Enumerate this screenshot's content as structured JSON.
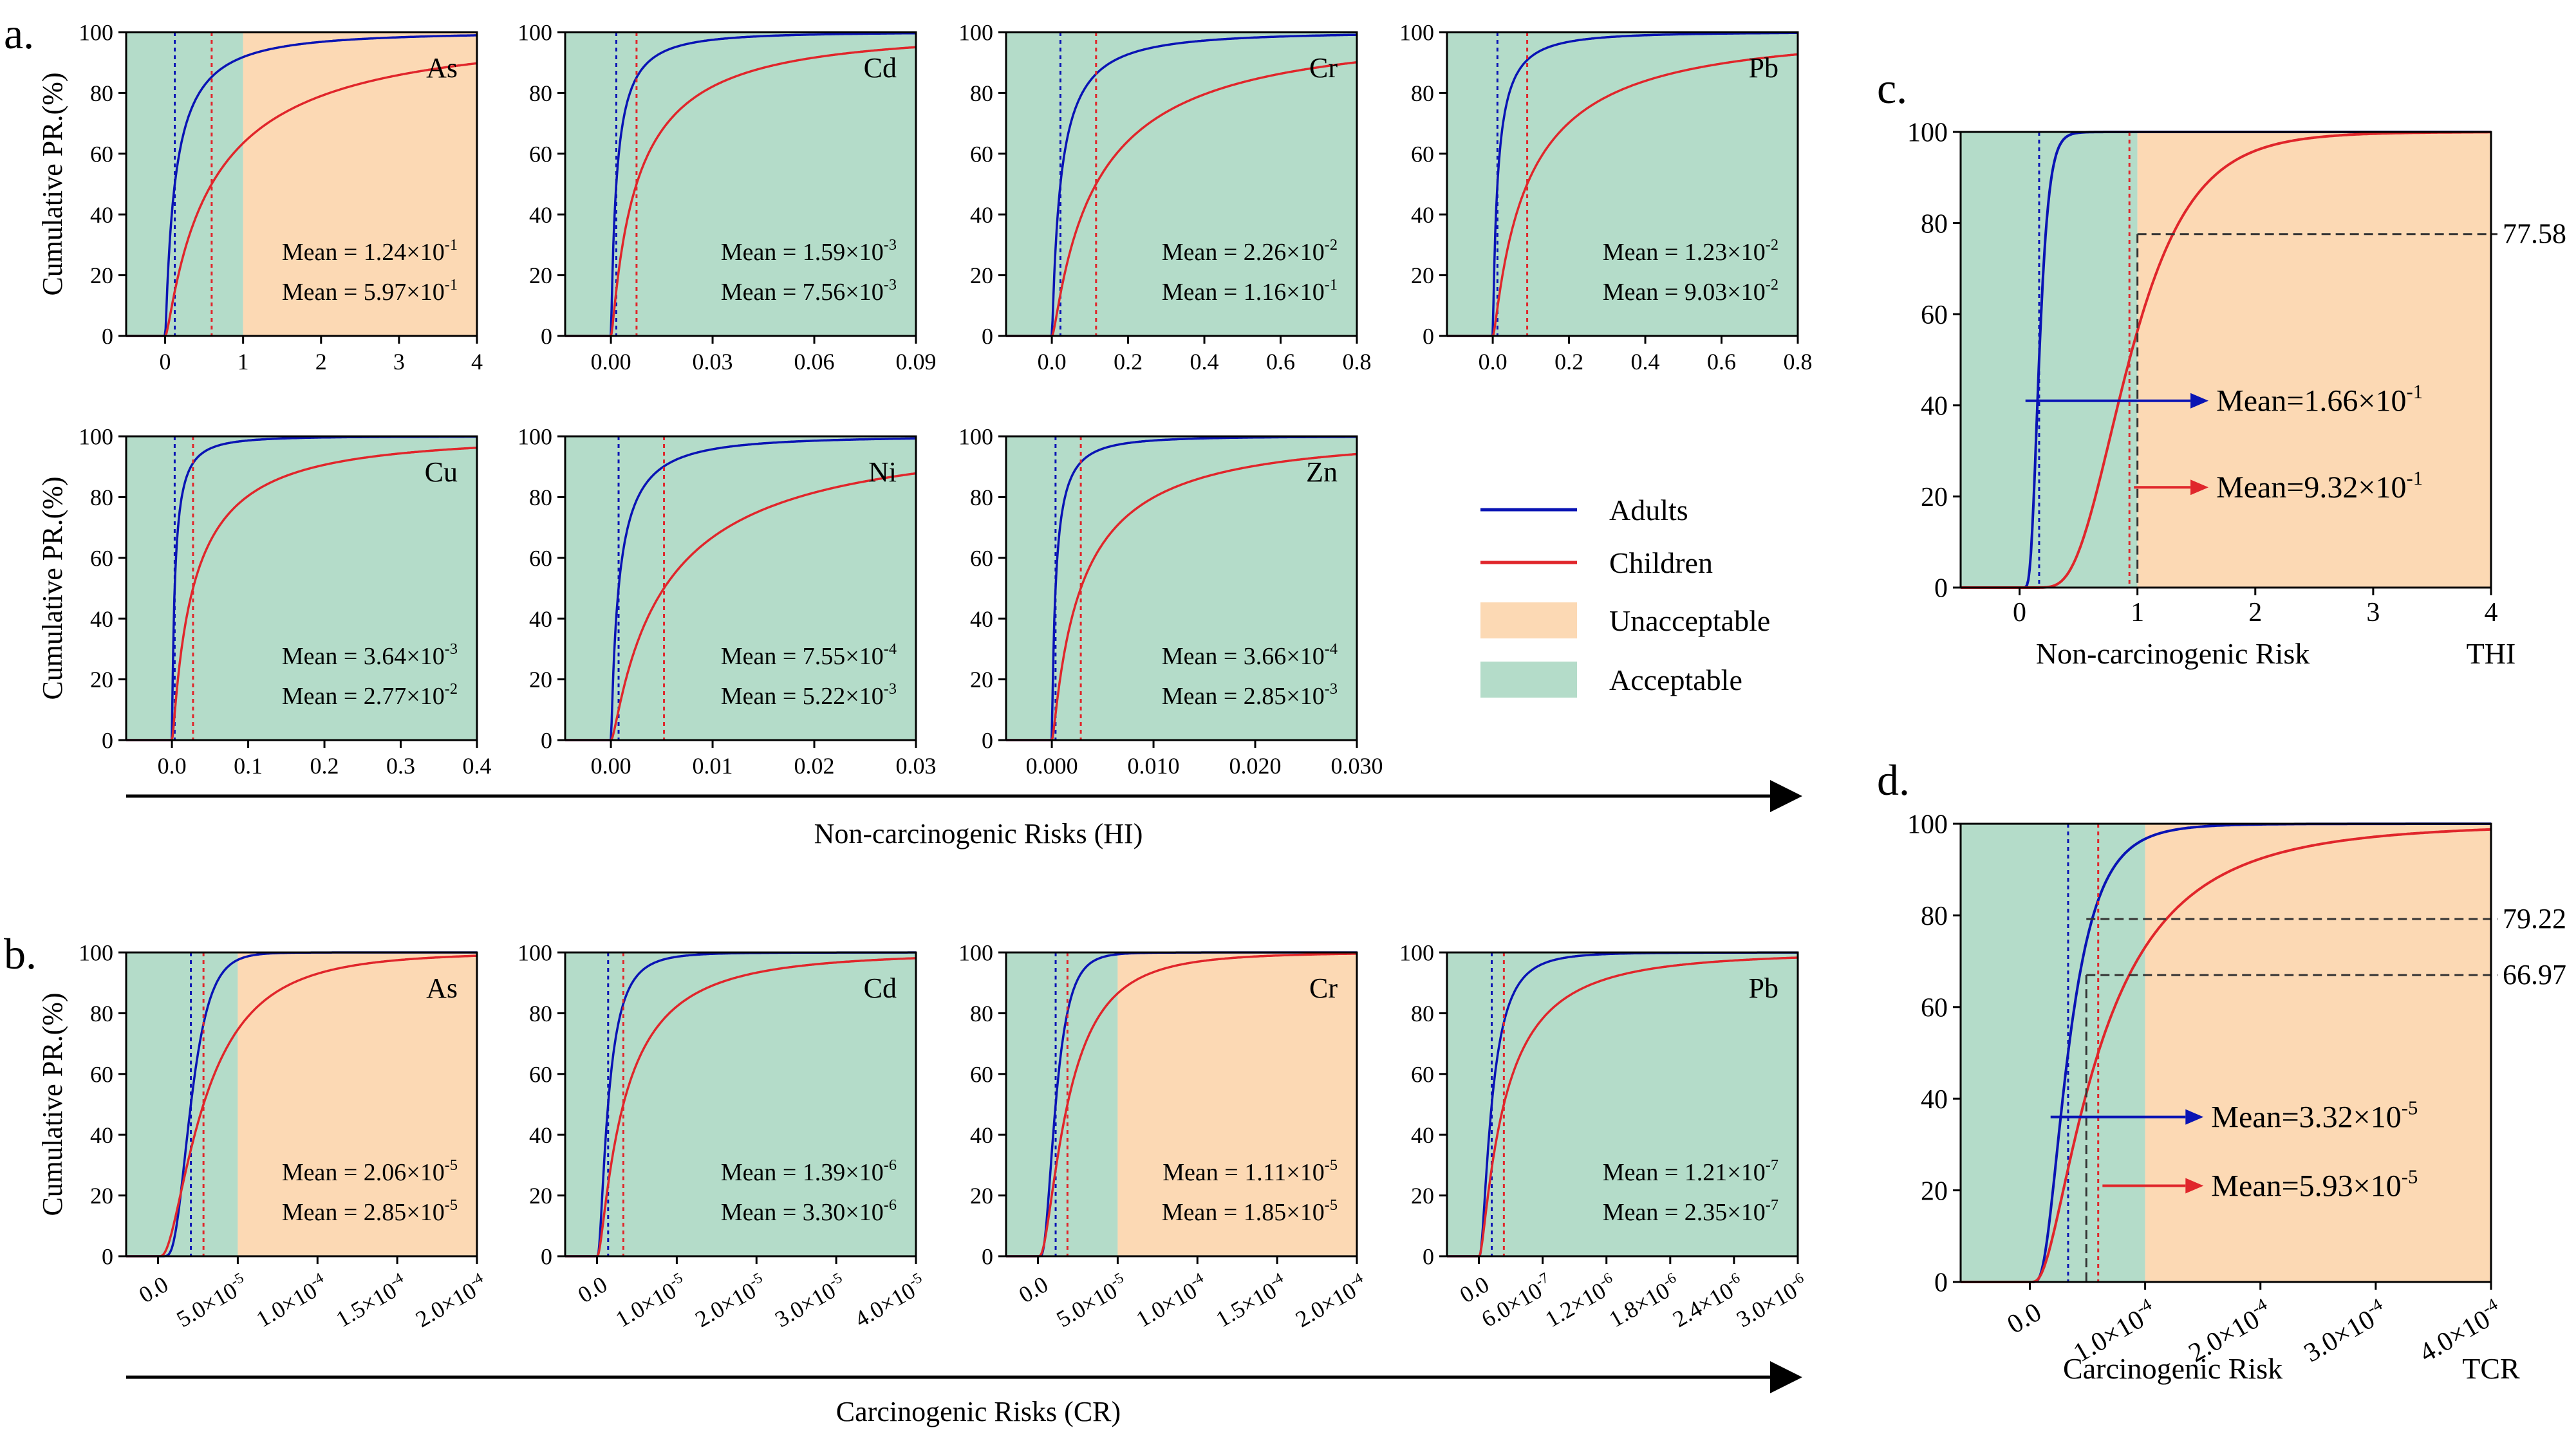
{
  "figure": {
    "colors": {
      "adults": "#0a14b4",
      "children": "#e0262b",
      "unacceptable": "#fcd9b4",
      "acceptable": "#b4dcc9",
      "axis": "#000000",
      "guide": "#333333"
    },
    "arrow_hi_label": "Non-carcinogenic Risks (HI)",
    "arrow_cr_label": "Carcinogenic Risks (CR)",
    "legend": {
      "adults": "Adults",
      "children": "Children",
      "unacceptable": "Unacceptable",
      "acceptable": "Acceptable"
    }
  },
  "chart_data": [
    {
      "id": "a1",
      "panel_letter": "a.",
      "element": "As",
      "type": "line",
      "ylabel": "Cumulative PR.(%)",
      "xlim": [
        -0.5,
        4
      ],
      "ylim": [
        0,
        100
      ],
      "xticks": [
        0,
        1,
        2,
        3,
        4
      ],
      "xtick_labels": [
        "0",
        "1",
        "2",
        "3",
        "4"
      ],
      "yticks": [
        0,
        20,
        40,
        60,
        80,
        100
      ],
      "yticklabels": [
        "0",
        "20",
        "40",
        "60",
        "80",
        "100"
      ],
      "threshold": 1,
      "series": [
        {
          "name": "Adults",
          "mean": 0.124,
          "scale": 0.124,
          "spread": 1.5,
          "mean_text": "Mean = 1.24×10",
          "mean_exp": "-1"
        },
        {
          "name": "Children",
          "mean": 0.597,
          "scale": 0.597,
          "spread": 1.5,
          "mean_text": "Mean = 5.97×10",
          "mean_exp": "-1"
        }
      ]
    },
    {
      "id": "a2",
      "element": "Cd",
      "type": "line",
      "xlim": [
        -0.0135,
        0.09
      ],
      "ylim": [
        0,
        100
      ],
      "xticks": [
        0,
        0.03,
        0.06,
        0.09
      ],
      "xtick_labels": [
        "0.00",
        "0.03",
        "0.06",
        "0.09"
      ],
      "yticks": [
        0,
        20,
        40,
        60,
        80,
        100
      ],
      "yticklabels": [
        "0",
        "20",
        "40",
        "60",
        "80",
        "100"
      ],
      "threshold": 1,
      "series": [
        {
          "name": "Adults",
          "mean": 0.00159,
          "scale": 0.00159,
          "spread": 1.5,
          "mean_text": "Mean = 1.59×10",
          "mean_exp": "-3"
        },
        {
          "name": "Children",
          "mean": 0.00756,
          "scale": 0.00756,
          "spread": 1.5,
          "mean_text": "Mean = 7.56×10",
          "mean_exp": "-3"
        }
      ]
    },
    {
      "id": "a3",
      "element": "Cr",
      "type": "line",
      "xlim": [
        -0.12,
        0.8
      ],
      "ylim": [
        0,
        100
      ],
      "xticks": [
        0,
        0.2,
        0.4,
        0.6,
        0.8
      ],
      "xtick_labels": [
        "0.0",
        "0.2",
        "0.4",
        "0.6",
        "0.8"
      ],
      "yticks": [
        0,
        20,
        40,
        60,
        80,
        100
      ],
      "yticklabels": [
        "0",
        "20",
        "40",
        "60",
        "80",
        "100"
      ],
      "threshold": 1,
      "series": [
        {
          "name": "Adults",
          "mean": 0.0226,
          "scale": 0.0226,
          "spread": 1.5,
          "mean_text": "Mean = 2.26×10",
          "mean_exp": "-2"
        },
        {
          "name": "Children",
          "mean": 0.116,
          "scale": 0.116,
          "spread": 1.5,
          "mean_text": "Mean = 1.16×10",
          "mean_exp": "-1"
        }
      ]
    },
    {
      "id": "a4",
      "element": "Pb",
      "type": "line",
      "xlim": [
        -0.12,
        0.8
      ],
      "ylim": [
        0,
        100
      ],
      "xticks": [
        0,
        0.2,
        0.4,
        0.6,
        0.8
      ],
      "xtick_labels": [
        "0.0",
        "0.2",
        "0.4",
        "0.6",
        "0.8"
      ],
      "yticks": [
        0,
        20,
        40,
        60,
        80,
        100
      ],
      "yticklabels": [
        "0",
        "20",
        "40",
        "60",
        "80",
        "100"
      ],
      "threshold": 1,
      "series": [
        {
          "name": "Adults",
          "mean": 0.0123,
          "scale": 0.0123,
          "spread": 1.5,
          "mean_text": "Mean = 1.23×10",
          "mean_exp": "-2"
        },
        {
          "name": "Children",
          "mean": 0.0903,
          "scale": 0.0903,
          "spread": 1.5,
          "mean_text": "Mean = 9.03×10",
          "mean_exp": "-2"
        }
      ]
    },
    {
      "id": "a5",
      "element": "Cu",
      "type": "line",
      "ylabel": "Cumulative PR.(%)",
      "xlim": [
        -0.06,
        0.4
      ],
      "ylim": [
        0,
        100
      ],
      "xticks": [
        0,
        0.1,
        0.2,
        0.3,
        0.4
      ],
      "xtick_labels": [
        "0.0",
        "0.1",
        "0.2",
        "0.3",
        "0.4"
      ],
      "yticks": [
        0,
        20,
        40,
        60,
        80,
        100
      ],
      "yticklabels": [
        "0",
        "20",
        "40",
        "60",
        "80",
        "100"
      ],
      "threshold": 1,
      "series": [
        {
          "name": "Adults",
          "mean": 0.00364,
          "scale": 0.00364,
          "spread": 1.5,
          "mean_text": "Mean = 3.64×10",
          "mean_exp": "-3"
        },
        {
          "name": "Children",
          "mean": 0.0277,
          "scale": 0.0277,
          "spread": 1.5,
          "mean_text": "Mean = 2.77×10",
          "mean_exp": "-2"
        }
      ]
    },
    {
      "id": "a6",
      "element": "Ni",
      "type": "line",
      "xlim": [
        -0.0045,
        0.03
      ],
      "ylim": [
        0,
        100
      ],
      "xticks": [
        0,
        0.01,
        0.02,
        0.03
      ],
      "xtick_labels": [
        "0.00",
        "0.01",
        "0.02",
        "0.03"
      ],
      "yticks": [
        0,
        20,
        40,
        60,
        80,
        100
      ],
      "yticklabels": [
        "0",
        "20",
        "40",
        "60",
        "80",
        "100"
      ],
      "threshold": 1,
      "series": [
        {
          "name": "Adults",
          "mean": 0.000755,
          "scale": 0.000755,
          "spread": 1.5,
          "mean_text": "Mean = 7.55×10",
          "mean_exp": "-4"
        },
        {
          "name": "Children",
          "mean": 0.00522,
          "scale": 0.00522,
          "spread": 1.5,
          "mean_text": "Mean = 5.22×10",
          "mean_exp": "-3"
        }
      ]
    },
    {
      "id": "a7",
      "element": "Zn",
      "type": "line",
      "xlim": [
        -0.0045,
        0.03
      ],
      "ylim": [
        0,
        100
      ],
      "xticks": [
        0,
        0.01,
        0.02,
        0.03
      ],
      "xtick_labels": [
        "0.000",
        "0.010",
        "0.020",
        "0.030"
      ],
      "yticks": [
        0,
        20,
        40,
        60,
        80,
        100
      ],
      "yticklabels": [
        "0",
        "20",
        "40",
        "60",
        "80",
        "100"
      ],
      "threshold": 1,
      "series": [
        {
          "name": "Adults",
          "mean": 0.000366,
          "scale": 0.000366,
          "spread": 1.5,
          "mean_text": "Mean = 3.66×10",
          "mean_exp": "-4"
        },
        {
          "name": "Children",
          "mean": 0.00285,
          "scale": 0.00285,
          "spread": 1.5,
          "mean_text": "Mean = 2.85×10",
          "mean_exp": "-3"
        }
      ]
    },
    {
      "id": "b1",
      "panel_letter": "b.",
      "element": "As",
      "type": "line",
      "ylabel": "Cumulative PR.(%)",
      "xlim": [
        -2e-05,
        0.0002
      ],
      "ylim": [
        0,
        100
      ],
      "xticks": [
        0,
        5e-05,
        0.0001,
        0.00015,
        0.0002
      ],
      "xtick_labels": [
        [
          "0.0",
          ""
        ],
        [
          "5.0×10",
          "-5"
        ],
        [
          "1.0×10",
          "-4"
        ],
        [
          "1.5×10",
          "-4"
        ],
        [
          "2.0×10",
          "-4"
        ]
      ],
      "yticks": [
        0,
        20,
        40,
        60,
        80,
        100
      ],
      "yticklabels": [
        "0",
        "20",
        "40",
        "60",
        "80",
        "100"
      ],
      "threshold": 5e-05,
      "series": [
        {
          "name": "Adults",
          "mean": 2.06e-05,
          "scale": 2.06e-05,
          "spread": 0.45,
          "mean_text": "Mean = 2.06×10",
          "mean_exp": "-5"
        },
        {
          "name": "Children",
          "mean": 2.85e-05,
          "scale": 2.85e-05,
          "spread": 0.85,
          "mean_text": "Mean = 2.85×10",
          "mean_exp": "-5"
        }
      ]
    },
    {
      "id": "b2",
      "element": "Cd",
      "type": "line",
      "xlim": [
        -4e-06,
        4e-05
      ],
      "ylim": [
        0,
        100
      ],
      "xticks": [
        0,
        1e-05,
        2e-05,
        3e-05,
        4e-05
      ],
      "xtick_labels": [
        [
          "0.0",
          ""
        ],
        [
          "1.0×10",
          "-5"
        ],
        [
          "2.0×10",
          "-5"
        ],
        [
          "3.0×10",
          "-5"
        ],
        [
          "4.0×10",
          "-5"
        ]
      ],
      "yticks": [
        0,
        20,
        40,
        60,
        80,
        100
      ],
      "yticklabels": [
        "0",
        "20",
        "40",
        "60",
        "80",
        "100"
      ],
      "threshold": 0.0001,
      "series": [
        {
          "name": "Adults",
          "mean": 1.39e-06,
          "scale": 1.39e-06,
          "spread": 0.9,
          "mean_text": "Mean = 1.39×10",
          "mean_exp": "-6"
        },
        {
          "name": "Children",
          "mean": 3.3e-06,
          "scale": 3.3e-06,
          "spread": 1.2,
          "mean_text": "Mean = 3.30×10",
          "mean_exp": "-6"
        }
      ]
    },
    {
      "id": "b3",
      "element": "Cr",
      "type": "line",
      "xlim": [
        -2e-05,
        0.0002
      ],
      "ylim": [
        0,
        100
      ],
      "xticks": [
        0,
        5e-05,
        0.0001,
        0.00015,
        0.0002
      ],
      "xtick_labels": [
        [
          "0.0",
          ""
        ],
        [
          "5.0×10",
          "-5"
        ],
        [
          "1.0×10",
          "-4"
        ],
        [
          "1.5×10",
          "-4"
        ],
        [
          "2.0×10",
          "-4"
        ]
      ],
      "yticks": [
        0,
        20,
        40,
        60,
        80,
        100
      ],
      "yticklabels": [
        "0",
        "20",
        "40",
        "60",
        "80",
        "100"
      ],
      "threshold": 5e-05,
      "series": [
        {
          "name": "Adults",
          "mean": 1.11e-05,
          "scale": 1.11e-05,
          "spread": 0.6,
          "mean_text": "Mean = 1.11×10",
          "mean_exp": "-5"
        },
        {
          "name": "Children",
          "mean": 1.85e-05,
          "scale": 1.85e-05,
          "spread": 0.9,
          "mean_text": "Mean = 1.85×10",
          "mean_exp": "-5"
        }
      ]
    },
    {
      "id": "b4",
      "element": "Pb",
      "type": "line",
      "xlim": [
        -3e-07,
        3e-06
      ],
      "ylim": [
        0,
        100
      ],
      "xticks": [
        0,
        6e-07,
        1.2e-06,
        1.8e-06,
        2.4e-06,
        3e-06
      ],
      "xtick_labels": [
        [
          "0.0",
          ""
        ],
        [
          "6.0×10",
          "-7"
        ],
        [
          "1.2×10",
          "-6"
        ],
        [
          "1.8×10",
          "-6"
        ],
        [
          "2.4×10",
          "-6"
        ],
        [
          "3.0×10",
          "-6"
        ]
      ],
      "yticks": [
        0,
        20,
        40,
        60,
        80,
        100
      ],
      "yticklabels": [
        "0",
        "20",
        "40",
        "60",
        "80",
        "100"
      ],
      "threshold": 0.0001,
      "series": [
        {
          "name": "Adults",
          "mean": 1.21e-07,
          "scale": 1.21e-07,
          "spread": 0.9,
          "mean_text": "Mean = 1.21×10",
          "mean_exp": "-7"
        },
        {
          "name": "Children",
          "mean": 2.35e-07,
          "scale": 2.35e-07,
          "spread": 1.2,
          "mean_text": "Mean = 2.35×10",
          "mean_exp": "-7"
        }
      ]
    },
    {
      "id": "c",
      "panel_letter": "c.",
      "type": "line",
      "xlabel": "Non-carcinogenic Risk",
      "xlabel_right": "THI",
      "xlim": [
        -0.5,
        4
      ],
      "ylim": [
        0,
        100
      ],
      "xticks": [
        0,
        1,
        2,
        3,
        4
      ],
      "xtick_labels": [
        "0",
        "1",
        "2",
        "3",
        "4"
      ],
      "yticks": [
        0,
        20,
        40,
        60,
        80,
        100
      ],
      "yticklabels": [
        "0",
        "20",
        "40",
        "60",
        "80",
        "100"
      ],
      "threshold": 1,
      "hline": {
        "value": 77.58,
        "label": "77.58"
      },
      "series": [
        {
          "name": "Adults",
          "mean": 0.166,
          "scale": 0.166,
          "spread": 0.38,
          "mean_text": "Mean=1.66×10",
          "mean_exp": "-1"
        },
        {
          "name": "Children",
          "mean": 0.932,
          "scale": 0.932,
          "spread": 0.44,
          "mean_text": "Mean=9.32×10",
          "mean_exp": "-1"
        }
      ]
    },
    {
      "id": "d",
      "panel_letter": "d.",
      "type": "line",
      "xlabel": "Carcinogenic Risk",
      "xlabel_right": "TCR",
      "xlim": [
        -6e-05,
        0.0004
      ],
      "ylim": [
        0,
        100
      ],
      "xticks": [
        0,
        0.0001,
        0.0002,
        0.0003,
        0.0004
      ],
      "xtick_labels": [
        [
          "0.0",
          ""
        ],
        [
          "1.0×10",
          "-4"
        ],
        [
          "2.0×10",
          "-4"
        ],
        [
          "3.0×10",
          "-4"
        ],
        [
          "4.0×10",
          "-4"
        ]
      ],
      "yticks": [
        0,
        20,
        40,
        60,
        80,
        100
      ],
      "yticklabels": [
        "0",
        "20",
        "40",
        "60",
        "80",
        "100"
      ],
      "threshold": 0.0001,
      "threshold_marker": 4.9e-05,
      "hline": [
        {
          "value": 79.22,
          "label": "79.22"
        },
        {
          "value": 66.97,
          "label": "66.97"
        }
      ],
      "series": [
        {
          "name": "Adults",
          "mean": 3.32e-05,
          "scale": 3.32e-05,
          "spread": 0.6,
          "mean_text": "Mean=3.32×10",
          "mean_exp": "-5"
        },
        {
          "name": "Children",
          "mean": 5.93e-05,
          "scale": 5.93e-05,
          "spread": 0.85,
          "mean_text": "Mean=5.93×10",
          "mean_exp": "-5"
        }
      ]
    }
  ]
}
